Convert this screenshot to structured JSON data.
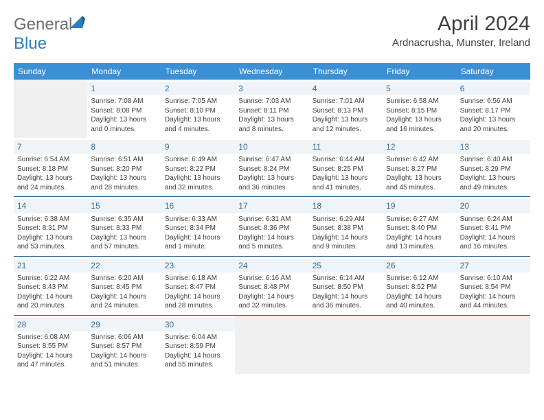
{
  "brand": {
    "part1": "General",
    "part2": "Blue"
  },
  "title": "April 2024",
  "location": "Ardnacrusha, Munster, Ireland",
  "colors": {
    "header_bg": "#3b8fd4",
    "header_text": "#ffffff",
    "daynum_bg": "#eef4f7",
    "daynum_text": "#3a6a94",
    "border": "#2c5f8a",
    "body_text": "#404040",
    "logo_gray": "#6b6b6b",
    "logo_blue": "#2c7fbf",
    "empty_bg": "#f0f0f0"
  },
  "day_names": [
    "Sunday",
    "Monday",
    "Tuesday",
    "Wednesday",
    "Thursday",
    "Friday",
    "Saturday"
  ],
  "weeks": [
    [
      {
        "empty": true
      },
      {
        "day": "1",
        "sunrise": "7:08 AM",
        "sunset": "8:08 PM",
        "daylight": "13 hours and 0 minutes."
      },
      {
        "day": "2",
        "sunrise": "7:05 AM",
        "sunset": "8:10 PM",
        "daylight": "13 hours and 4 minutes."
      },
      {
        "day": "3",
        "sunrise": "7:03 AM",
        "sunset": "8:11 PM",
        "daylight": "13 hours and 8 minutes."
      },
      {
        "day": "4",
        "sunrise": "7:01 AM",
        "sunset": "8:13 PM",
        "daylight": "13 hours and 12 minutes."
      },
      {
        "day": "5",
        "sunrise": "6:58 AM",
        "sunset": "8:15 PM",
        "daylight": "13 hours and 16 minutes."
      },
      {
        "day": "6",
        "sunrise": "6:56 AM",
        "sunset": "8:17 PM",
        "daylight": "13 hours and 20 minutes."
      }
    ],
    [
      {
        "day": "7",
        "sunrise": "6:54 AM",
        "sunset": "8:18 PM",
        "daylight": "13 hours and 24 minutes."
      },
      {
        "day": "8",
        "sunrise": "6:51 AM",
        "sunset": "8:20 PM",
        "daylight": "13 hours and 28 minutes."
      },
      {
        "day": "9",
        "sunrise": "6:49 AM",
        "sunset": "8:22 PM",
        "daylight": "13 hours and 32 minutes."
      },
      {
        "day": "10",
        "sunrise": "6:47 AM",
        "sunset": "8:24 PM",
        "daylight": "13 hours and 36 minutes."
      },
      {
        "day": "11",
        "sunrise": "6:44 AM",
        "sunset": "8:25 PM",
        "daylight": "13 hours and 41 minutes."
      },
      {
        "day": "12",
        "sunrise": "6:42 AM",
        "sunset": "8:27 PM",
        "daylight": "13 hours and 45 minutes."
      },
      {
        "day": "13",
        "sunrise": "6:40 AM",
        "sunset": "8:29 PM",
        "daylight": "13 hours and 49 minutes."
      }
    ],
    [
      {
        "day": "14",
        "sunrise": "6:38 AM",
        "sunset": "8:31 PM",
        "daylight": "13 hours and 53 minutes."
      },
      {
        "day": "15",
        "sunrise": "6:35 AM",
        "sunset": "8:33 PM",
        "daylight": "13 hours and 57 minutes."
      },
      {
        "day": "16",
        "sunrise": "6:33 AM",
        "sunset": "8:34 PM",
        "daylight": "14 hours and 1 minute."
      },
      {
        "day": "17",
        "sunrise": "6:31 AM",
        "sunset": "8:36 PM",
        "daylight": "14 hours and 5 minutes."
      },
      {
        "day": "18",
        "sunrise": "6:29 AM",
        "sunset": "8:38 PM",
        "daylight": "14 hours and 9 minutes."
      },
      {
        "day": "19",
        "sunrise": "6:27 AM",
        "sunset": "8:40 PM",
        "daylight": "14 hours and 13 minutes."
      },
      {
        "day": "20",
        "sunrise": "6:24 AM",
        "sunset": "8:41 PM",
        "daylight": "14 hours and 16 minutes."
      }
    ],
    [
      {
        "day": "21",
        "sunrise": "6:22 AM",
        "sunset": "8:43 PM",
        "daylight": "14 hours and 20 minutes."
      },
      {
        "day": "22",
        "sunrise": "6:20 AM",
        "sunset": "8:45 PM",
        "daylight": "14 hours and 24 minutes."
      },
      {
        "day": "23",
        "sunrise": "6:18 AM",
        "sunset": "8:47 PM",
        "daylight": "14 hours and 28 minutes."
      },
      {
        "day": "24",
        "sunrise": "6:16 AM",
        "sunset": "8:48 PM",
        "daylight": "14 hours and 32 minutes."
      },
      {
        "day": "25",
        "sunrise": "6:14 AM",
        "sunset": "8:50 PM",
        "daylight": "14 hours and 36 minutes."
      },
      {
        "day": "26",
        "sunrise": "6:12 AM",
        "sunset": "8:52 PM",
        "daylight": "14 hours and 40 minutes."
      },
      {
        "day": "27",
        "sunrise": "6:10 AM",
        "sunset": "8:54 PM",
        "daylight": "14 hours and 44 minutes."
      }
    ],
    [
      {
        "day": "28",
        "sunrise": "6:08 AM",
        "sunset": "8:55 PM",
        "daylight": "14 hours and 47 minutes."
      },
      {
        "day": "29",
        "sunrise": "6:06 AM",
        "sunset": "8:57 PM",
        "daylight": "14 hours and 51 minutes."
      },
      {
        "day": "30",
        "sunrise": "6:04 AM",
        "sunset": "8:59 PM",
        "daylight": "14 hours and 55 minutes."
      },
      {
        "empty": true
      },
      {
        "empty": true
      },
      {
        "empty": true
      },
      {
        "empty": true
      }
    ]
  ]
}
